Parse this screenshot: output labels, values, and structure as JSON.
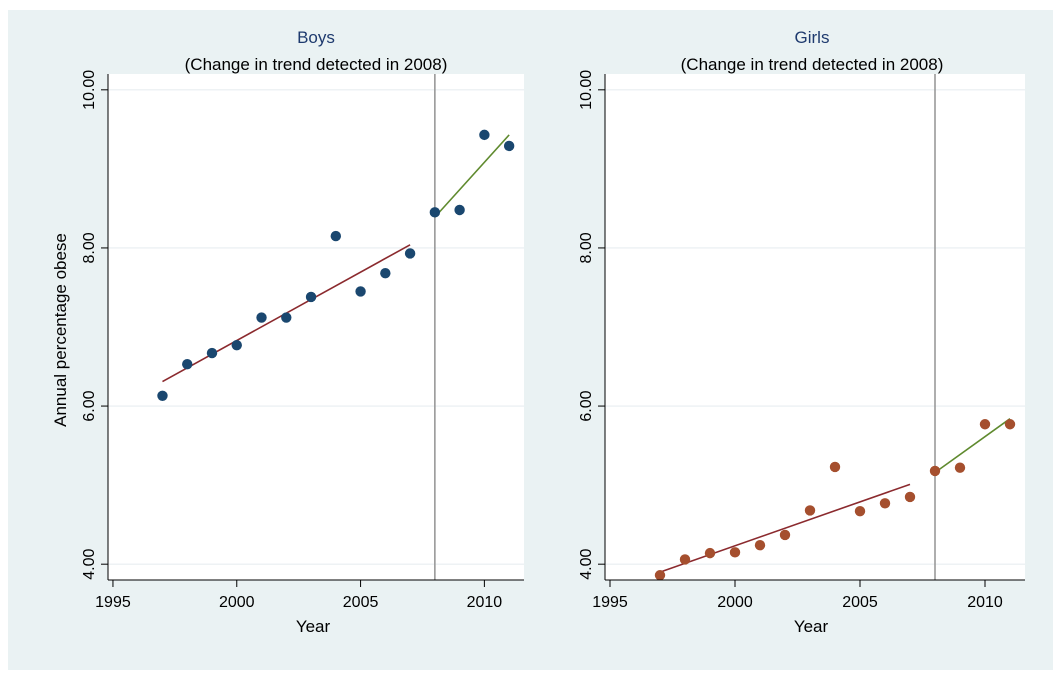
{
  "colors": {
    "background": "#eaf2f3",
    "plot_bg": "#ffffff",
    "grid": "#e8eef0",
    "title": "#1e3a6e",
    "text": "#000000",
    "axis": "#000000",
    "vline": "#999999",
    "pre_trend_line": "#8b2a2e",
    "post_trend_line": "#5f8a2e",
    "boys_points": "#1a476f",
    "girls_points": "#a54f2e"
  },
  "chart_data": [
    {
      "type": "scatter",
      "title": "Boys",
      "subtitle": "(Change in trend detected in 2008)",
      "xlabel": "Year",
      "ylabel": "Annual percentage obese",
      "xlim": [
        1994.8,
        2011.6
      ],
      "ylim": [
        3.8,
        10.2
      ],
      "xticks": [
        1995,
        2000,
        2005,
        2010
      ],
      "xtick_labels": [
        "1995",
        "2000",
        "2005",
        "2010"
      ],
      "yticks": [
        4,
        6,
        8,
        10
      ],
      "ytick_labels": [
        "4.00",
        "6.00",
        "8.00",
        "10.00"
      ],
      "grid": true,
      "vertical_line_x": 2008,
      "series": [
        {
          "x": [
            1997,
            1998,
            1999,
            2000,
            2001,
            2002,
            2003,
            2004,
            2005,
            2006,
            2007,
            2008,
            2009,
            2010,
            2011
          ],
          "y": [
            6.13,
            6.53,
            6.67,
            6.77,
            7.12,
            7.12,
            7.38,
            8.15,
            7.45,
            7.68,
            7.93,
            8.45,
            8.48,
            9.43,
            9.29
          ]
        }
      ],
      "trend_lines": [
        {
          "segment": "pre",
          "x": [
            1997,
            2007
          ],
          "y": [
            6.31,
            8.04
          ]
        },
        {
          "segment": "post",
          "x": [
            2008,
            2011
          ],
          "y": [
            8.39,
            9.43
          ]
        }
      ]
    },
    {
      "type": "scatter",
      "title": "Girls",
      "subtitle": "(Change in trend detected in 2008)",
      "xlabel": "Year",
      "ylabel": "",
      "xlim": [
        1994.8,
        2011.6
      ],
      "ylim": [
        3.8,
        10.2
      ],
      "xticks": [
        1995,
        2000,
        2005,
        2010
      ],
      "xtick_labels": [
        "1995",
        "2000",
        "2005",
        "2010"
      ],
      "yticks": [
        4,
        6,
        8,
        10
      ],
      "ytick_labels": [
        "4.00",
        "6.00",
        "8.00",
        "10.00"
      ],
      "grid": true,
      "vertical_line_x": 2008,
      "series": [
        {
          "x": [
            1997,
            1998,
            1999,
            2000,
            2001,
            2002,
            2003,
            2004,
            2005,
            2006,
            2007,
            2008,
            2009,
            2010,
            2011
          ],
          "y": [
            3.86,
            4.06,
            4.14,
            4.15,
            4.24,
            4.37,
            4.68,
            5.23,
            4.67,
            4.77,
            4.85,
            5.18,
            5.22,
            5.77,
            5.77
          ]
        }
      ],
      "trend_lines": [
        {
          "segment": "pre",
          "x": [
            1997,
            2007
          ],
          "y": [
            3.9,
            5.01
          ]
        },
        {
          "segment": "post",
          "x": [
            2008,
            2011
          ],
          "y": [
            5.16,
            5.84
          ]
        }
      ]
    }
  ]
}
